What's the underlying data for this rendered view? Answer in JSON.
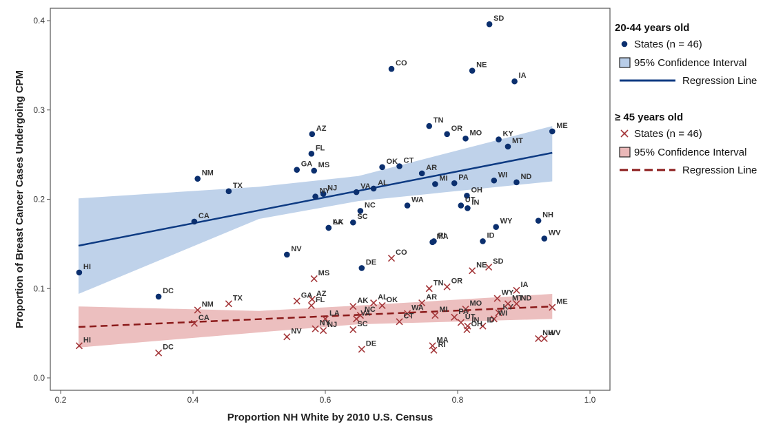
{
  "chart_data": {
    "type": "scatter",
    "title": "",
    "xlabel": "Proportion NH White by 2010 U.S. Census",
    "ylabel": "Proportion of Breast Cancer Cases Undergoing CPM",
    "xlim": [
      0.2,
      1.0
    ],
    "ylim": [
      0.0,
      0.4
    ],
    "xticks": [
      "0.2",
      "0.4",
      "0.6",
      "0.8",
      "1.0"
    ],
    "yticks": [
      "0.0",
      "0.1",
      "0.2",
      "0.3",
      "0.4"
    ],
    "grid": false,
    "legend_position": "right-outside",
    "series": [
      {
        "group_title": "20-44 years old",
        "name": "States (n = 46)",
        "marker": "dot",
        "color": "#0b2f6e",
        "ci_label": "95% Confidence  Interval",
        "ci_color": "#b8cde8",
        "reg_label": "Regression Line",
        "regression": {
          "x": [
            0.227,
            0.943
          ],
          "y": [
            0.148,
            0.252
          ]
        },
        "ci": {
          "x": [
            0.227,
            0.5,
            0.65,
            0.943
          ],
          "lower": [
            0.094,
            0.178,
            0.198,
            0.22
          ],
          "upper": [
            0.201,
            0.214,
            0.226,
            0.282
          ]
        },
        "points": [
          {
            "s": "SD",
            "x": 0.848,
            "y": 0.396
          },
          {
            "s": "CO",
            "x": 0.7,
            "y": 0.346
          },
          {
            "s": "NE",
            "x": 0.822,
            "y": 0.344
          },
          {
            "s": "IA",
            "x": 0.886,
            "y": 0.332
          },
          {
            "s": "TN",
            "x": 0.757,
            "y": 0.282
          },
          {
            "s": "ME",
            "x": 0.943,
            "y": 0.276
          },
          {
            "s": "OR",
            "x": 0.784,
            "y": 0.273
          },
          {
            "s": "AZ",
            "x": 0.58,
            "y": 0.273
          },
          {
            "s": "KY",
            "x": 0.862,
            "y": 0.267
          },
          {
            "s": "MO",
            "x": 0.812,
            "y": 0.268
          },
          {
            "s": "MT",
            "x": 0.876,
            "y": 0.259
          },
          {
            "s": "FL",
            "x": 0.579,
            "y": 0.251
          },
          {
            "s": "OK",
            "x": 0.686,
            "y": 0.236
          },
          {
            "s": "CT",
            "x": 0.712,
            "y": 0.237
          },
          {
            "s": "GA",
            "x": 0.557,
            "y": 0.233
          },
          {
            "s": "MS",
            "x": 0.583,
            "y": 0.232
          },
          {
            "s": "AR",
            "x": 0.746,
            "y": 0.229
          },
          {
            "s": "NM",
            "x": 0.407,
            "y": 0.223
          },
          {
            "s": "WI",
            "x": 0.855,
            "y": 0.221
          },
          {
            "s": "ND",
            "x": 0.889,
            "y": 0.219
          },
          {
            "s": "PA",
            "x": 0.795,
            "y": 0.218
          },
          {
            "s": "MI",
            "x": 0.766,
            "y": 0.217
          },
          {
            "s": "AL",
            "x": 0.673,
            "y": 0.212
          },
          {
            "s": "TX",
            "x": 0.454,
            "y": 0.209
          },
          {
            "s": "VA",
            "x": 0.647,
            "y": 0.208
          },
          {
            "s": "NJ",
            "x": 0.597,
            "y": 0.206
          },
          {
            "s": "NY",
            "x": 0.585,
            "y": 0.203
          },
          {
            "s": "OH",
            "x": 0.814,
            "y": 0.204
          },
          {
            "s": "UT",
            "x": 0.805,
            "y": 0.193
          },
          {
            "s": "WA",
            "x": 0.724,
            "y": 0.193
          },
          {
            "s": "IN",
            "x": 0.815,
            "y": 0.19
          },
          {
            "s": "NC",
            "x": 0.653,
            "y": 0.187
          },
          {
            "s": "NH",
            "x": 0.922,
            "y": 0.176
          },
          {
            "s": "CA",
            "x": 0.402,
            "y": 0.175
          },
          {
            "s": "SC",
            "x": 0.642,
            "y": 0.174
          },
          {
            "s": "WY",
            "x": 0.858,
            "y": 0.169
          },
          {
            "s": "AK",
            "x": 0.605,
            "y": 0.168
          },
          {
            "s": "LA",
            "x": 0.605,
            "y": 0.168
          },
          {
            "s": "WV",
            "x": 0.931,
            "y": 0.156
          },
          {
            "s": "ID",
            "x": 0.838,
            "y": 0.153
          },
          {
            "s": "MA",
            "x": 0.762,
            "y": 0.152
          },
          {
            "s": "RI",
            "x": 0.764,
            "y": 0.153
          },
          {
            "s": "NV",
            "x": 0.542,
            "y": 0.138
          },
          {
            "s": "DE",
            "x": 0.655,
            "y": 0.123
          },
          {
            "s": "HI",
            "x": 0.228,
            "y": 0.118
          },
          {
            "s": "DC",
            "x": 0.348,
            "y": 0.091
          }
        ]
      },
      {
        "group_title": "≥ 45 years old",
        "name": "States (n = 46)",
        "marker": "x",
        "color": "#a4373a",
        "ci_label": "95% Confidence  Interval",
        "ci_color": "#eab8b8",
        "reg_label": "Regression Line",
        "regression": {
          "x": [
            0.227,
            0.943
          ],
          "y": [
            0.057,
            0.08
          ]
        },
        "ci": {
          "x": [
            0.227,
            0.5,
            0.65,
            0.943
          ],
          "lower": [
            0.034,
            0.051,
            0.06,
            0.066
          ],
          "upper": [
            0.08,
            0.075,
            0.081,
            0.094
          ]
        },
        "points": [
          {
            "s": "CO",
            "x": 0.7,
            "y": 0.134
          },
          {
            "s": "SD",
            "x": 0.847,
            "y": 0.124
          },
          {
            "s": "NE",
            "x": 0.822,
            "y": 0.12
          },
          {
            "s": "MS",
            "x": 0.583,
            "y": 0.111
          },
          {
            "s": "OR",
            "x": 0.784,
            "y": 0.102
          },
          {
            "s": "TN",
            "x": 0.757,
            "y": 0.1
          },
          {
            "s": "IA",
            "x": 0.889,
            "y": 0.098
          },
          {
            "s": "AZ",
            "x": 0.58,
            "y": 0.088
          },
          {
            "s": "WY",
            "x": 0.86,
            "y": 0.089
          },
          {
            "s": "GA",
            "x": 0.557,
            "y": 0.086
          },
          {
            "s": "AL",
            "x": 0.673,
            "y": 0.084
          },
          {
            "s": "TX",
            "x": 0.454,
            "y": 0.083
          },
          {
            "s": "AR",
            "x": 0.746,
            "y": 0.084
          },
          {
            "s": "ND",
            "x": 0.889,
            "y": 0.083
          },
          {
            "s": "FL",
            "x": 0.579,
            "y": 0.081
          },
          {
            "s": "OK",
            "x": 0.686,
            "y": 0.081
          },
          {
            "s": "AK",
            "x": 0.642,
            "y": 0.08
          },
          {
            "s": "ME",
            "x": 0.943,
            "y": 0.079
          },
          {
            "s": "MO",
            "x": 0.812,
            "y": 0.077
          },
          {
            "s": "NM",
            "x": 0.407,
            "y": 0.076
          },
          {
            "s": "KY",
            "x": 0.862,
            "y": 0.073
          },
          {
            "s": "MT",
            "x": 0.876,
            "y": 0.083
          },
          {
            "s": "WA",
            "x": 0.724,
            "y": 0.072
          },
          {
            "s": "NC",
            "x": 0.653,
            "y": 0.07
          },
          {
            "s": "MI",
            "x": 0.766,
            "y": 0.07
          },
          {
            "s": "PA",
            "x": 0.795,
            "y": 0.068
          },
          {
            "s": "LA",
            "x": 0.6,
            "y": 0.066
          },
          {
            "s": "VA",
            "x": 0.647,
            "y": 0.066
          },
          {
            "s": "WI",
            "x": 0.855,
            "y": 0.066
          },
          {
            "s": "UT",
            "x": 0.805,
            "y": 0.062
          },
          {
            "s": "CT",
            "x": 0.712,
            "y": 0.063
          },
          {
            "s": "CA",
            "x": 0.402,
            "y": 0.061
          },
          {
            "s": "IN",
            "x": 0.815,
            "y": 0.058
          },
          {
            "s": "ID",
            "x": 0.838,
            "y": 0.058
          },
          {
            "s": "NY",
            "x": 0.585,
            "y": 0.055
          },
          {
            "s": "OH",
            "x": 0.814,
            "y": 0.054
          },
          {
            "s": "SC",
            "x": 0.642,
            "y": 0.054
          },
          {
            "s": "NJ",
            "x": 0.597,
            "y": 0.053
          },
          {
            "s": "NV",
            "x": 0.542,
            "y": 0.046
          },
          {
            "s": "NH",
            "x": 0.922,
            "y": 0.044
          },
          {
            "s": "WV",
            "x": 0.931,
            "y": 0.044
          },
          {
            "s": "MA",
            "x": 0.762,
            "y": 0.036
          },
          {
            "s": "HI",
            "x": 0.228,
            "y": 0.036
          },
          {
            "s": "RI",
            "x": 0.764,
            "y": 0.031
          },
          {
            "s": "DE",
            "x": 0.655,
            "y": 0.032
          },
          {
            "s": "DC",
            "x": 0.348,
            "y": 0.028
          }
        ]
      }
    ]
  }
}
